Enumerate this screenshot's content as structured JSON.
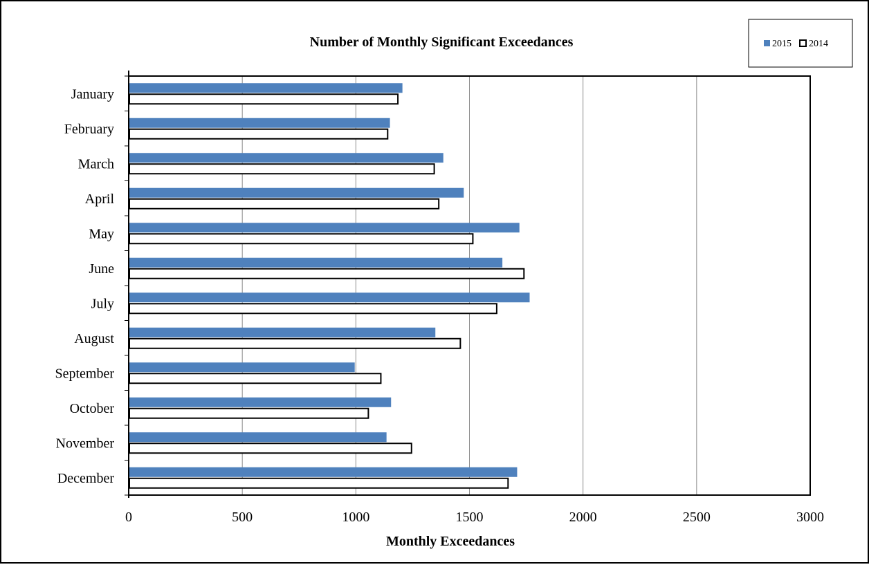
{
  "chart_data": {
    "type": "bar",
    "orientation": "horizontal",
    "title": "Number of Monthly Significant Exceedances",
    "xlabel": "Monthly Exceedances",
    "ylabel": "",
    "xlim": [
      0,
      3000
    ],
    "x_ticks": [
      "0",
      "500",
      "1000",
      "1500",
      "2000",
      "2500",
      "3000"
    ],
    "grid": "vertical",
    "legend_position": "top-right",
    "categories": [
      "January",
      "February",
      "March",
      "April",
      "May",
      "June",
      "July",
      "August",
      "September",
      "October",
      "November",
      "December"
    ],
    "series": [
      {
        "name": "2015",
        "color": "#4f81bd",
        "style": "filled",
        "values": [
          1205,
          1150,
          1385,
          1475,
          1720,
          1645,
          1765,
          1350,
          995,
          1155,
          1135,
          1710
        ]
      },
      {
        "name": "2014",
        "color": "#ffffff",
        "stroke": "#000000",
        "style": "outlined",
        "values": [
          1185,
          1140,
          1345,
          1365,
          1515,
          1740,
          1620,
          1460,
          1110,
          1055,
          1245,
          1670
        ]
      }
    ]
  }
}
